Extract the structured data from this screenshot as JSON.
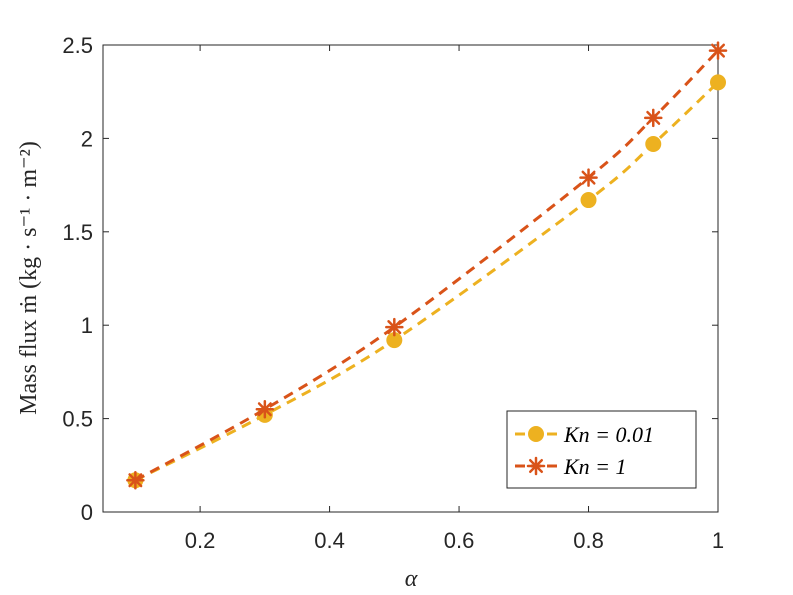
{
  "chart_data": {
    "type": "line",
    "xlabel": "α",
    "ylabel": "Mass flux ṁ (kg · s⁻¹ · m⁻²)",
    "xlim": [
      0.05,
      1
    ],
    "ylim": [
      0,
      2.5
    ],
    "xticks": [
      0.2,
      0.4,
      0.6,
      0.8,
      1
    ],
    "yticks": [
      0,
      0.5,
      1,
      1.5,
      2,
      2.5
    ],
    "xtick_labels": [
      "0.2",
      "0.4",
      "0.6",
      "0.8",
      "1"
    ],
    "ytick_labels": [
      "0",
      "0.5",
      "1",
      "1.5",
      "2",
      "2.5"
    ],
    "grid": false,
    "legend_position": "bottom-right",
    "series": [
      {
        "name": "Kn = 0.01",
        "color": "#EDB120",
        "marker": "circle",
        "line_style": "dashed",
        "x": [
          0.1,
          0.3,
          0.5,
          0.8,
          0.9,
          1.0
        ],
        "y": [
          0.17,
          0.52,
          0.92,
          1.67,
          1.97,
          2.3
        ]
      },
      {
        "name": "Kn = 1",
        "color": "#D95319",
        "marker": "asterisk",
        "line_style": "dashed",
        "x": [
          0.1,
          0.3,
          0.5,
          0.8,
          0.9,
          1.0
        ],
        "y": [
          0.17,
          0.55,
          0.99,
          1.79,
          2.11,
          2.47
        ]
      }
    ]
  }
}
